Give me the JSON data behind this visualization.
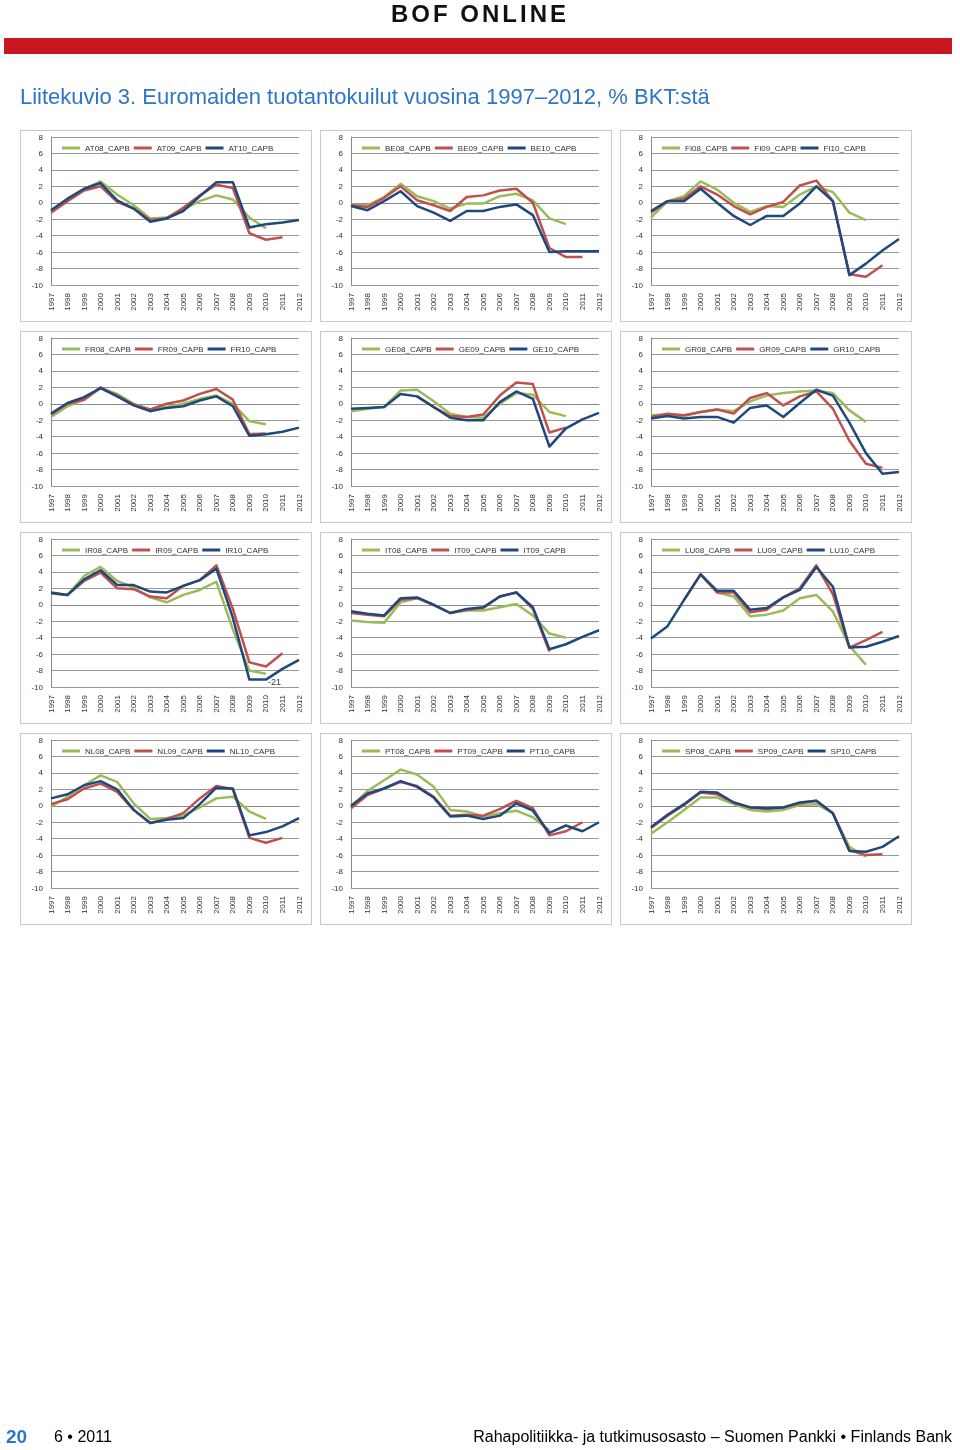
{
  "chart_data": [
    {
      "type": "line",
      "title": "Liitekuvio 3. Euromaiden tuotantokuilut vuosina 1997–2012, % BKT:stä",
      "annotations": [
        "BOF ONLINE",
        "20",
        "6 • 2011",
        "Rahapolitiikka- ja tutkimusosasto – Suomen Pankki • Finlands Bank"
      ],
      "categories": [
        "1997",
        "1998",
        "1999",
        "2000",
        "2001",
        "2002",
        "2003",
        "2004",
        "2005",
        "2006",
        "2007",
        "2008",
        "2009",
        "2010",
        "2011",
        "2012"
      ],
      "ylim": [
        -10,
        8
      ],
      "yticks": [
        -10,
        -8,
        -6,
        -4,
        -2,
        0,
        2,
        4,
        6,
        8
      ],
      "grid": "y",
      "legend": "top",
      "marker": "none",
      "series": [
        {
          "name": "AT08_CAPB",
          "color": "#9bbb59",
          "values": [
            -0.9,
            0.4,
            1.7,
            2.6,
            1.0,
            -0.3,
            -1.9,
            -1.8,
            -0.8,
            0.2,
            0.9,
            0.4,
            -1.8,
            -3.1,
            null,
            null
          ]
        },
        {
          "name": "AT09_CAPB",
          "color": "#c0504d",
          "values": [
            -1.2,
            0.2,
            1.5,
            2.0,
            0.1,
            -0.7,
            -2.1,
            -1.9,
            -0.6,
            0.9,
            2.2,
            1.8,
            -3.7,
            -4.5,
            -4.2,
            null
          ]
        },
        {
          "name": "AT10_CAPB",
          "color": "#1f497d",
          "values": [
            -0.9,
            0.5,
            1.7,
            2.4,
            0.3,
            -0.7,
            -2.3,
            -1.9,
            -1.0,
            0.8,
            2.5,
            2.5,
            -3.0,
            -2.6,
            -2.4,
            -2.1
          ]
        }
      ]
    },
    {
      "type": "line",
      "categories": [
        "1997",
        "1998",
        "1999",
        "2000",
        "2001",
        "2002",
        "2003",
        "2004",
        "2005",
        "2006",
        "2007",
        "2008",
        "2009",
        "2010",
        "2011",
        "2012"
      ],
      "ylim": [
        -10,
        8
      ],
      "yticks": [
        -10,
        -8,
        -6,
        -4,
        -2,
        0,
        2,
        4,
        6,
        8
      ],
      "grid": "y",
      "legend": "top",
      "marker": "none",
      "series": [
        {
          "name": "BE08_CAPB",
          "color": "#9bbb59",
          "values": [
            -0.2,
            -0.3,
            0.7,
            2.3,
            0.8,
            0.2,
            -0.7,
            -0.1,
            -0.1,
            0.8,
            1.1,
            0.3,
            -1.9,
            -2.6,
            null,
            null
          ]
        },
        {
          "name": "BE09_CAPB",
          "color": "#c0504d",
          "values": [
            -0.3,
            -0.5,
            0.6,
            2.0,
            0.3,
            -0.3,
            -1.0,
            0.7,
            0.9,
            1.5,
            1.7,
            0.0,
            -5.5,
            -6.6,
            -6.6,
            null
          ]
        },
        {
          "name": "BE10_CAPB",
          "color": "#1f497d",
          "values": [
            -0.4,
            -0.9,
            0.2,
            1.4,
            -0.4,
            -1.2,
            -2.2,
            -1.0,
            -1.0,
            -0.5,
            -0.2,
            -1.5,
            -6.0,
            -5.9,
            -5.9,
            -5.9
          ]
        }
      ]
    },
    {
      "type": "line",
      "categories": [
        "1997",
        "1998",
        "1999",
        "2000",
        "2001",
        "2002",
        "2003",
        "2004",
        "2005",
        "2006",
        "2007",
        "2008",
        "2009",
        "2010",
        "2011",
        "2012"
      ],
      "ylim": [
        -10,
        8
      ],
      "yticks": [
        -10,
        -8,
        -6,
        -4,
        -2,
        0,
        2,
        4,
        6,
        8
      ],
      "grid": "y",
      "legend": "top",
      "marker": "none",
      "series": [
        {
          "name": "FI08_CAPB",
          "color": "#9bbb59",
          "values": [
            -1.8,
            0.2,
            0.8,
            2.6,
            1.6,
            0.0,
            -1.1,
            -0.4,
            -0.5,
            1.0,
            2.0,
            1.3,
            -1.2,
            -2.1,
            null,
            null
          ]
        },
        {
          "name": "FI09_CAPB",
          "color": "#c0504d",
          "values": [
            -1.2,
            0.2,
            0.5,
            2.0,
            1.0,
            -0.4,
            -1.4,
            -0.5,
            0.1,
            2.1,
            2.7,
            0.2,
            -8.7,
            -9.0,
            -7.6,
            null
          ]
        },
        {
          "name": "FI10_CAPB",
          "color": "#1f497d",
          "values": [
            -1.0,
            0.2,
            0.2,
            1.7,
            0.0,
            -1.6,
            -2.7,
            -1.6,
            -1.6,
            -0.1,
            2.0,
            0.2,
            -8.8,
            -7.4,
            -5.8,
            -4.4
          ]
        }
      ]
    },
    {
      "type": "line",
      "categories": [
        "1997",
        "1998",
        "1999",
        "2000",
        "2001",
        "2002",
        "2003",
        "2004",
        "2005",
        "2006",
        "2007",
        "2008",
        "2009",
        "2010",
        "2011",
        "2012"
      ],
      "ylim": [
        -10,
        8
      ],
      "yticks": [
        -10,
        -8,
        -6,
        -4,
        -2,
        0,
        2,
        4,
        6,
        8
      ],
      "grid": "y",
      "legend": "top",
      "marker": "none",
      "series": [
        {
          "name": "FR08_CAPB",
          "color": "#9bbb59",
          "values": [
            -1.6,
            -0.3,
            0.5,
            1.9,
            1.2,
            0.0,
            -0.7,
            -0.4,
            0.0,
            0.6,
            1.0,
            0.0,
            -2.1,
            -2.5,
            null,
            null
          ]
        },
        {
          "name": "FR09_CAPB",
          "color": "#c0504d",
          "values": [
            -1.3,
            0.0,
            0.5,
            2.0,
            1.0,
            -0.1,
            -0.7,
            0.0,
            0.4,
            1.2,
            1.8,
            0.5,
            -3.7,
            -3.6,
            null,
            null
          ]
        },
        {
          "name": "FR10_CAPB",
          "color": "#1f497d",
          "values": [
            -1.2,
            0.1,
            0.8,
            1.9,
            0.9,
            -0.2,
            -0.9,
            -0.5,
            -0.3,
            0.4,
            0.9,
            -0.3,
            -3.9,
            -3.7,
            -3.4,
            -2.9
          ]
        }
      ]
    },
    {
      "type": "line",
      "categories": [
        "1997",
        "1998",
        "1999",
        "2000",
        "2001",
        "2002",
        "2003",
        "2004",
        "2005",
        "2006",
        "2007",
        "2008",
        "2009",
        "2010",
        "2011",
        "2012"
      ],
      "ylim": [
        -10,
        8
      ],
      "yticks": [
        -10,
        -8,
        -6,
        -4,
        -2,
        0,
        2,
        4,
        6,
        8
      ],
      "grid": "y",
      "legend": "top",
      "marker": "none",
      "series": [
        {
          "name": "GE08_CAPB",
          "color": "#9bbb59",
          "values": [
            -0.9,
            -0.6,
            -0.4,
            1.6,
            1.7,
            0.3,
            -1.2,
            -1.6,
            -1.7,
            0.0,
            1.3,
            1.1,
            -1.0,
            -1.5,
            null,
            null
          ]
        },
        {
          "name": "GE09_CAPB",
          "color": "#c0504d",
          "values": [
            null,
            null,
            null,
            null,
            0.9,
            -0.4,
            -1.5,
            -1.6,
            -1.3,
            1.0,
            2.6,
            2.4,
            -3.5,
            -2.9,
            null,
            null
          ]
        },
        {
          "name": "GE10_CAPB",
          "color": "#1f497d",
          "values": [
            -0.6,
            -0.5,
            -0.4,
            1.2,
            0.9,
            -0.4,
            -1.7,
            -2.0,
            -2.0,
            0.2,
            1.5,
            0.6,
            -5.2,
            -3.0,
            -1.9,
            -1.1
          ]
        }
      ]
    },
    {
      "type": "line",
      "categories": [
        "1997",
        "1998",
        "1999",
        "2000",
        "2001",
        "2002",
        "2003",
        "2004",
        "2005",
        "2006",
        "2007",
        "2008",
        "2009",
        "2010",
        "2011",
        "2012"
      ],
      "ylim": [
        -10,
        8
      ],
      "yticks": [
        -10,
        -8,
        -6,
        -4,
        -2,
        0,
        2,
        4,
        6,
        8
      ],
      "grid": "y",
      "legend": "top",
      "marker": "none",
      "series": [
        {
          "name": "GR08_CAPB",
          "color": "#9bbb59",
          "values": [
            -1.4,
            -1.3,
            -1.5,
            -1.0,
            -0.7,
            -0.9,
            0.3,
            1.0,
            1.3,
            1.5,
            1.6,
            1.3,
            -0.8,
            -2.2,
            null,
            null
          ]
        },
        {
          "name": "GR09_CAPB",
          "color": "#c0504d",
          "values": [
            -1.6,
            -1.2,
            -1.4,
            -1.0,
            -0.7,
            -1.2,
            0.7,
            1.3,
            -0.2,
            0.9,
            1.5,
            -0.6,
            -4.5,
            -7.3,
            -7.8,
            null
          ]
        },
        {
          "name": "GR10_CAPB",
          "color": "#1f497d",
          "values": [
            -1.8,
            -1.5,
            -1.8,
            -1.6,
            -1.6,
            -2.3,
            -0.5,
            -0.2,
            -1.6,
            0.1,
            1.7,
            1.0,
            -2.3,
            -6.0,
            -8.5,
            -8.3
          ]
        }
      ]
    },
    {
      "type": "line",
      "categories": [
        "1997",
        "1998",
        "1999",
        "2000",
        "2001",
        "2002",
        "2003",
        "2004",
        "2005",
        "2006",
        "2007",
        "2008",
        "2009",
        "2010",
        "2011",
        "2012"
      ],
      "ylim": [
        -10,
        8
      ],
      "yticks": [
        -10,
        -8,
        -6,
        -4,
        -2,
        0,
        2,
        4,
        6,
        8
      ],
      "grid": "y",
      "legend": "top",
      "marker": "none",
      "annotations": [
        {
          "text": "-21",
          "x": "2010",
          "y": -9.1
        }
      ],
      "series": [
        {
          "name": "IR08_CAPB",
          "color": "#9bbb59",
          "values": [
            1.4,
            1.2,
            3.5,
            4.6,
            2.9,
            2.1,
            0.9,
            0.3,
            1.2,
            1.8,
            2.8,
            -3.0,
            -8.0,
            -8.4,
            null,
            null
          ]
        },
        {
          "name": "IR09_CAPB",
          "color": "#c0504d",
          "values": [
            1.4,
            1.2,
            2.9,
            3.9,
            2.0,
            1.9,
            1.0,
            0.8,
            2.3,
            3.0,
            4.8,
            -0.5,
            -7.0,
            -7.5,
            -5.9,
            null
          ]
        },
        {
          "name": "IR10_CAPB",
          "color": "#1f497d",
          "values": [
            1.5,
            1.2,
            3.1,
            4.2,
            2.4,
            2.4,
            1.6,
            1.5,
            2.3,
            3.0,
            4.4,
            -1.6,
            -9.1,
            -9.1,
            -7.8,
            -6.7
          ]
        }
      ]
    },
    {
      "type": "line",
      "categories": [
        "1997",
        "1998",
        "1999",
        "2000",
        "2001",
        "2002",
        "2003",
        "2004",
        "2005",
        "2006",
        "2007",
        "2008",
        "2009",
        "2010",
        "2011",
        "2012"
      ],
      "ylim": [
        -10,
        8
      ],
      "yticks": [
        -10,
        -8,
        -6,
        -4,
        -2,
        0,
        2,
        4,
        6,
        8
      ],
      "grid": "y",
      "legend": "top",
      "marker": "none",
      "series": [
        {
          "name": "IT08_CAPB",
          "color": "#9bbb59",
          "values": [
            -1.9,
            -2.1,
            -2.2,
            0.3,
            0.8,
            0.0,
            -1.0,
            -0.7,
            -0.7,
            -0.3,
            0.1,
            -1.3,
            -3.5,
            -4.0,
            null,
            null
          ]
        },
        {
          "name": "IT09_CAPB",
          "color": "#c0504d",
          "values": [
            -1.0,
            -1.2,
            -1.4,
            0.6,
            0.8,
            0.0,
            -1.0,
            -0.6,
            -0.4,
            1.0,
            1.5,
            -0.5,
            -5.7,
            null,
            null,
            null
          ]
        },
        {
          "name": "IT09_CAPB",
          "color": "#1f497d",
          "values": [
            -0.8,
            -1.1,
            -1.3,
            0.8,
            0.9,
            0.0,
            -1.0,
            -0.5,
            -0.3,
            1.0,
            1.5,
            -0.3,
            -5.4,
            -4.8,
            -3.9,
            -3.1
          ]
        }
      ]
    },
    {
      "type": "line",
      "categories": [
        "1997",
        "1998",
        "1999",
        "2000",
        "2001",
        "2002",
        "2003",
        "2004",
        "2005",
        "2006",
        "2007",
        "2008",
        "2009",
        "2010",
        "2011",
        "2012"
      ],
      "ylim": [
        -10,
        8
      ],
      "yticks": [
        -10,
        -8,
        -6,
        -4,
        -2,
        0,
        2,
        4,
        6,
        8
      ],
      "grid": "y",
      "legend": "top",
      "marker": "none",
      "series": [
        {
          "name": "LU08_CAPB",
          "color": "#9bbb59",
          "values": [
            null,
            null,
            null,
            3.7,
            1.5,
            1.0,
            -1.4,
            -1.2,
            -0.7,
            0.8,
            1.2,
            -0.8,
            -5.0,
            -7.3,
            null,
            null
          ]
        },
        {
          "name": "LU09_CAPB",
          "color": "#c0504d",
          "values": [
            null,
            null,
            0.6,
            3.7,
            1.5,
            1.5,
            -0.9,
            -0.6,
            0.9,
            2.0,
            4.8,
            1.3,
            -5.2,
            -4.3,
            -3.3,
            null
          ]
        },
        {
          "name": "LU10_CAPB",
          "color": "#1f497d",
          "values": [
            -4.1,
            -2.6,
            0.6,
            3.7,
            1.7,
            1.7,
            -0.6,
            -0.4,
            0.9,
            1.8,
            4.6,
            2.2,
            -5.2,
            -5.1,
            -4.5,
            -3.8
          ]
        }
      ]
    },
    {
      "type": "line",
      "categories": [
        "1997",
        "1998",
        "1999",
        "2000",
        "2001",
        "2002",
        "2003",
        "2004",
        "2005",
        "2006",
        "2007",
        "2008",
        "2009",
        "2010",
        "2011",
        "2012"
      ],
      "ylim": [
        -10,
        8
      ],
      "yticks": [
        -10,
        -8,
        -6,
        -4,
        -2,
        0,
        2,
        4,
        6,
        8
      ],
      "grid": "y",
      "legend": "top",
      "marker": "none",
      "series": [
        {
          "name": "NL08_CAPB",
          "color": "#9bbb59",
          "values": [
            -0.1,
            1.1,
            2.5,
            3.7,
            2.9,
            0.3,
            -1.6,
            -1.5,
            -1.2,
            -0.2,
            0.9,
            1.1,
            -0.7,
            -1.6,
            null,
            null
          ]
        },
        {
          "name": "NL09_CAPB",
          "color": "#c0504d",
          "values": [
            0.2,
            0.8,
            2.1,
            2.7,
            1.7,
            -0.5,
            -2.1,
            -1.6,
            -0.9,
            0.9,
            2.4,
            2.0,
            -3.9,
            -4.5,
            -3.9,
            null
          ]
        },
        {
          "name": "NL10_CAPB",
          "color": "#1f497d",
          "values": [
            0.9,
            1.4,
            2.5,
            3.0,
            2.0,
            -0.5,
            -2.1,
            -1.7,
            -1.5,
            0.2,
            2.2,
            2.1,
            -3.6,
            -3.2,
            -2.5,
            -1.5
          ]
        }
      ]
    },
    {
      "type": "line",
      "categories": [
        "1997",
        "1998",
        "1999",
        "2000",
        "2001",
        "2002",
        "2003",
        "2004",
        "2005",
        "2006",
        "2007",
        "2008",
        "2009",
        "2010",
        "2011",
        "2012"
      ],
      "ylim": [
        -10,
        8
      ],
      "yticks": [
        -10,
        -8,
        -6,
        -4,
        -2,
        0,
        2,
        4,
        6,
        8
      ],
      "grid": "y",
      "legend": "top",
      "marker": "none",
      "series": [
        {
          "name": "PT08_CAPB",
          "color": "#9bbb59",
          "values": [
            -0.1,
            1.8,
            3.1,
            4.4,
            3.8,
            2.3,
            -0.5,
            -0.7,
            -1.3,
            -0.9,
            -0.6,
            -1.4,
            -3.0,
            null,
            null,
            null
          ]
        },
        {
          "name": "PT09_CAPB",
          "color": "#c0504d",
          "values": [
            -0.3,
            1.3,
            2.1,
            2.9,
            2.4,
            1.1,
            -1.2,
            -1.1,
            -1.2,
            -0.4,
            0.6,
            -0.3,
            -3.6,
            -3.1,
            -2.0,
            null
          ]
        },
        {
          "name": "PT10_CAPB",
          "color": "#1f497d",
          "values": [
            0.0,
            1.5,
            2.1,
            3.0,
            2.3,
            1.0,
            -1.3,
            -1.2,
            -1.6,
            -1.2,
            0.3,
            -0.6,
            -3.3,
            -2.4,
            -3.1,
            -2.0
          ]
        }
      ]
    },
    {
      "type": "line",
      "categories": [
        "1997",
        "1998",
        "1999",
        "2000",
        "2001",
        "2002",
        "2003",
        "2004",
        "2005",
        "2006",
        "2007",
        "2008",
        "2009",
        "2010",
        "2011",
        "2012"
      ],
      "ylim": [
        -10,
        8
      ],
      "yticks": [
        -10,
        -8,
        -6,
        -4,
        -2,
        0,
        2,
        4,
        6,
        8
      ],
      "grid": "y",
      "legend": "top",
      "marker": "none",
      "series": [
        {
          "name": "SP08_CAPB",
          "color": "#9bbb59",
          "values": [
            -3.4,
            -2.0,
            -0.5,
            1.0,
            1.0,
            0.2,
            -0.5,
            -0.7,
            -0.5,
            0.1,
            0.2,
            -0.9,
            -5.0,
            -6.2,
            null,
            null
          ]
        },
        {
          "name": "SP09_CAPB",
          "color": "#c0504d",
          "values": [
            -2.7,
            -1.2,
            0.1,
            1.6,
            1.4,
            0.4,
            -0.2,
            -0.4,
            -0.2,
            0.3,
            0.6,
            -0.9,
            -5.4,
            -6.0,
            -5.9,
            null
          ]
        },
        {
          "name": "SP10_CAPB",
          "color": "#1f497d",
          "values": [
            -2.6,
            -1.1,
            0.2,
            1.7,
            1.6,
            0.4,
            -0.2,
            -0.3,
            -0.2,
            0.4,
            0.6,
            -0.9,
            -5.5,
            -5.6,
            -5.0,
            -3.7
          ]
        }
      ]
    }
  ]
}
